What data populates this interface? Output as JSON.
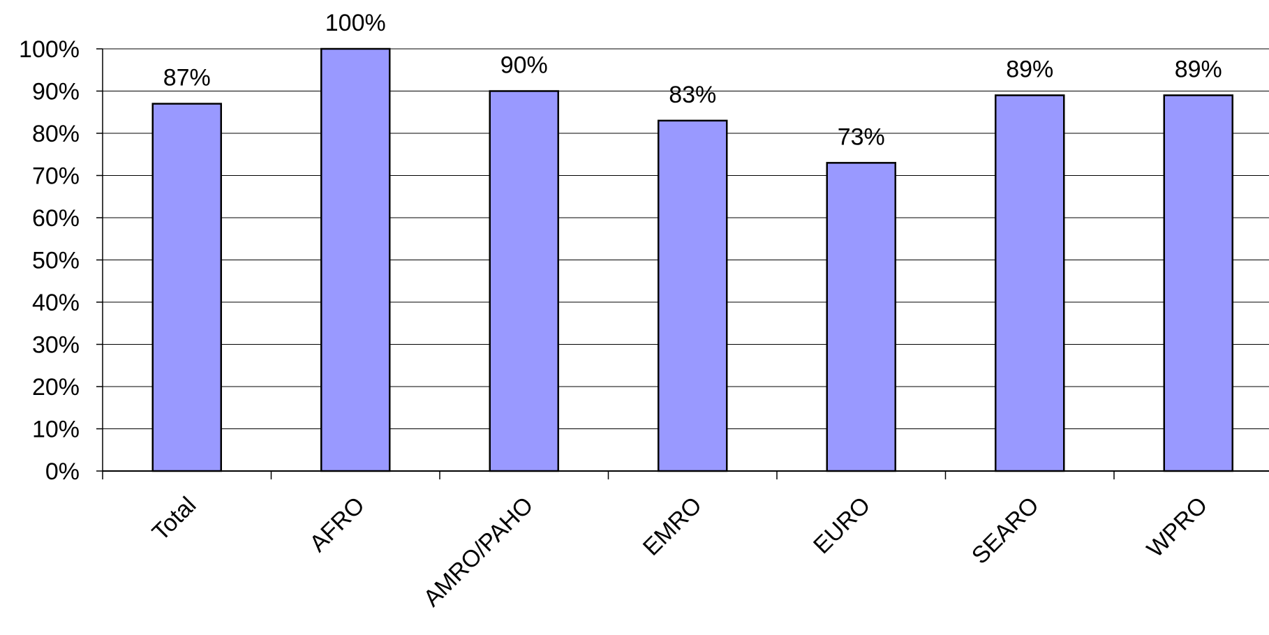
{
  "chart_data": {
    "type": "bar",
    "categories": [
      "Total",
      "AFRO",
      "AMRO/PAHO",
      "EMRO",
      "EURO",
      "SEARO",
      "WPRO"
    ],
    "values": [
      87,
      100,
      90,
      83,
      73,
      89,
      89
    ],
    "value_labels": [
      "87%",
      "100%",
      "90%",
      "83%",
      "73%",
      "89%",
      "89%"
    ],
    "ylim": [
      0,
      100
    ],
    "y_ticks": [
      0,
      10,
      20,
      30,
      40,
      50,
      60,
      70,
      80,
      90,
      100
    ],
    "y_tick_labels": [
      "0%",
      "10%",
      "20%",
      "30%",
      "40%",
      "50%",
      "60%",
      "70%",
      "80%",
      "90%",
      "100%"
    ],
    "grid": true,
    "legend": "none",
    "bar_color": "#9999ff",
    "bar_edge_color": "#000000"
  }
}
